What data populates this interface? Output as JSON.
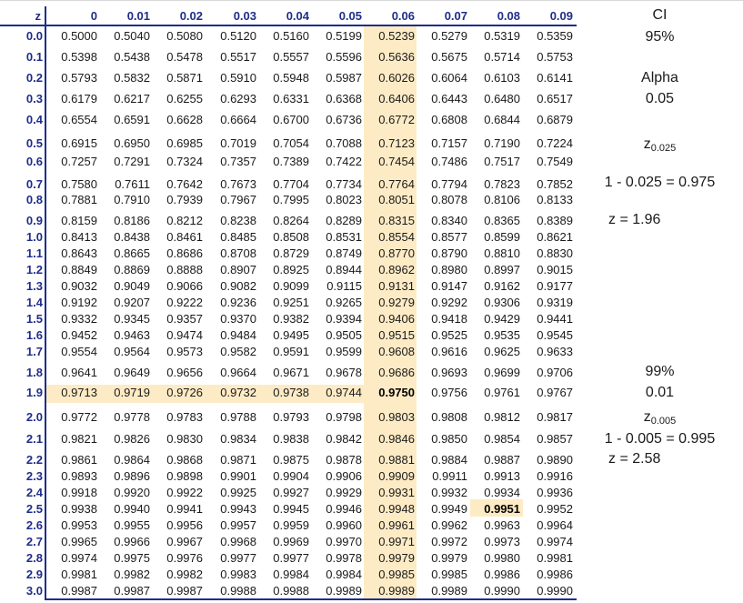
{
  "table": {
    "z_header": "z",
    "columns": [
      "0",
      "0.01",
      "0.02",
      "0.03",
      "0.04",
      "0.05",
      "0.06",
      "0.07",
      "0.08",
      "0.09"
    ],
    "rows": [
      {
        "z": "0.0",
        "values": [
          "0.5000",
          "0.5040",
          "0.5080",
          "0.5120",
          "0.5160",
          "0.5199",
          "0.5239",
          "0.5279",
          "0.5319",
          "0.5359"
        ]
      },
      {
        "z": "0.1",
        "values": [
          "0.5398",
          "0.5438",
          "0.5478",
          "0.5517",
          "0.5557",
          "0.5596",
          "0.5636",
          "0.5675",
          "0.5714",
          "0.5753"
        ]
      },
      {
        "z": "0.2",
        "values": [
          "0.5793",
          "0.5832",
          "0.5871",
          "0.5910",
          "0.5948",
          "0.5987",
          "0.6026",
          "0.6064",
          "0.6103",
          "0.6141"
        ]
      },
      {
        "z": "0.3",
        "values": [
          "0.6179",
          "0.6217",
          "0.6255",
          "0.6293",
          "0.6331",
          "0.6368",
          "0.6406",
          "0.6443",
          "0.6480",
          "0.6517"
        ]
      },
      {
        "z": "0.4",
        "values": [
          "0.6554",
          "0.6591",
          "0.6628",
          "0.6664",
          "0.6700",
          "0.6736",
          "0.6772",
          "0.6808",
          "0.6844",
          "0.6879"
        ]
      },
      {
        "z": "0.5",
        "values": [
          "0.6915",
          "0.6950",
          "0.6985",
          "0.7019",
          "0.7054",
          "0.7088",
          "0.7123",
          "0.7157",
          "0.7190",
          "0.7224"
        ]
      },
      {
        "z": "0.6",
        "values": [
          "0.7257",
          "0.7291",
          "0.7324",
          "0.7357",
          "0.7389",
          "0.7422",
          "0.7454",
          "0.7486",
          "0.7517",
          "0.7549"
        ]
      },
      {
        "z": "0.7",
        "values": [
          "0.7580",
          "0.7611",
          "0.7642",
          "0.7673",
          "0.7704",
          "0.7734",
          "0.7764",
          "0.7794",
          "0.7823",
          "0.7852"
        ]
      },
      {
        "z": "0.8",
        "values": [
          "0.7881",
          "0.7910",
          "0.7939",
          "0.7967",
          "0.7995",
          "0.8023",
          "0.8051",
          "0.8078",
          "0.8106",
          "0.8133"
        ]
      },
      {
        "z": "0.9",
        "values": [
          "0.8159",
          "0.8186",
          "0.8212",
          "0.8238",
          "0.8264",
          "0.8289",
          "0.8315",
          "0.8340",
          "0.8365",
          "0.8389"
        ]
      },
      {
        "z": "1.0",
        "values": [
          "0.8413",
          "0.8438",
          "0.8461",
          "0.8485",
          "0.8508",
          "0.8531",
          "0.8554",
          "0.8577",
          "0.8599",
          "0.8621"
        ]
      },
      {
        "z": "1.1",
        "values": [
          "0.8643",
          "0.8665",
          "0.8686",
          "0.8708",
          "0.8729",
          "0.8749",
          "0.8770",
          "0.8790",
          "0.8810",
          "0.8830"
        ]
      },
      {
        "z": "1.2",
        "values": [
          "0.8849",
          "0.8869",
          "0.8888",
          "0.8907",
          "0.8925",
          "0.8944",
          "0.8962",
          "0.8980",
          "0.8997",
          "0.9015"
        ]
      },
      {
        "z": "1.3",
        "values": [
          "0.9032",
          "0.9049",
          "0.9066",
          "0.9082",
          "0.9099",
          "0.9115",
          "0.9131",
          "0.9147",
          "0.9162",
          "0.9177"
        ]
      },
      {
        "z": "1.4",
        "values": [
          "0.9192",
          "0.9207",
          "0.9222",
          "0.9236",
          "0.9251",
          "0.9265",
          "0.9279",
          "0.9292",
          "0.9306",
          "0.9319"
        ]
      },
      {
        "z": "1.5",
        "values": [
          "0.9332",
          "0.9345",
          "0.9357",
          "0.9370",
          "0.9382",
          "0.9394",
          "0.9406",
          "0.9418",
          "0.9429",
          "0.9441"
        ]
      },
      {
        "z": "1.6",
        "values": [
          "0.9452",
          "0.9463",
          "0.9474",
          "0.9484",
          "0.9495",
          "0.9505",
          "0.9515",
          "0.9525",
          "0.9535",
          "0.9545"
        ]
      },
      {
        "z": "1.7",
        "values": [
          "0.9554",
          "0.9564",
          "0.9573",
          "0.9582",
          "0.9591",
          "0.9599",
          "0.9608",
          "0.9616",
          "0.9625",
          "0.9633"
        ]
      },
      {
        "z": "1.8",
        "values": [
          "0.9641",
          "0.9649",
          "0.9656",
          "0.9664",
          "0.9671",
          "0.9678",
          "0.9686",
          "0.9693",
          "0.9699",
          "0.9706"
        ]
      },
      {
        "z": "1.9",
        "values": [
          "0.9713",
          "0.9719",
          "0.9726",
          "0.9732",
          "0.9738",
          "0.9744",
          "0.9750",
          "0.9756",
          "0.9761",
          "0.9767"
        ]
      },
      {
        "z": "2.0",
        "values": [
          "0.9772",
          "0.9778",
          "0.9783",
          "0.9788",
          "0.9793",
          "0.9798",
          "0.9803",
          "0.9808",
          "0.9812",
          "0.9817"
        ]
      },
      {
        "z": "2.1",
        "values": [
          "0.9821",
          "0.9826",
          "0.9830",
          "0.9834",
          "0.9838",
          "0.9842",
          "0.9846",
          "0.9850",
          "0.9854",
          "0.9857"
        ]
      },
      {
        "z": "2.2",
        "values": [
          "0.9861",
          "0.9864",
          "0.9868",
          "0.9871",
          "0.9875",
          "0.9878",
          "0.9881",
          "0.9884",
          "0.9887",
          "0.9890"
        ]
      },
      {
        "z": "2.3",
        "values": [
          "0.9893",
          "0.9896",
          "0.9898",
          "0.9901",
          "0.9904",
          "0.9906",
          "0.9909",
          "0.9911",
          "0.9913",
          "0.9916"
        ]
      },
      {
        "z": "2.4",
        "values": [
          "0.9918",
          "0.9920",
          "0.9922",
          "0.9925",
          "0.9927",
          "0.9929",
          "0.9931",
          "0.9932",
          "0.9934",
          "0.9936"
        ]
      },
      {
        "z": "2.5",
        "values": [
          "0.9938",
          "0.9940",
          "0.9941",
          "0.9943",
          "0.9945",
          "0.9946",
          "0.9948",
          "0.9949",
          "0.9951",
          "0.9952"
        ]
      },
      {
        "z": "2.6",
        "values": [
          "0.9953",
          "0.9955",
          "0.9956",
          "0.9957",
          "0.9959",
          "0.9960",
          "0.9961",
          "0.9962",
          "0.9963",
          "0.9964"
        ]
      },
      {
        "z": "2.7",
        "values": [
          "0.9965",
          "0.9966",
          "0.9967",
          "0.9968",
          "0.9969",
          "0.9970",
          "0.9971",
          "0.9972",
          "0.9973",
          "0.9974"
        ]
      },
      {
        "z": "2.8",
        "values": [
          "0.9974",
          "0.9975",
          "0.9976",
          "0.9977",
          "0.9977",
          "0.9978",
          "0.9979",
          "0.9979",
          "0.9980",
          "0.9981"
        ]
      },
      {
        "z": "2.9",
        "values": [
          "0.9981",
          "0.9982",
          "0.9982",
          "0.9983",
          "0.9984",
          "0.9984",
          "0.9985",
          "0.9985",
          "0.9986",
          "0.9986"
        ]
      },
      {
        "z": "3.0",
        "values": [
          "0.9987",
          "0.9987",
          "0.9987",
          "0.9988",
          "0.9988",
          "0.9989",
          "0.9989",
          "0.9989",
          "0.9990",
          "0.9990"
        ]
      }
    ],
    "bold_cells": [
      {
        "z": "1.9",
        "column": "0.06"
      },
      {
        "z": "2.5",
        "column": "0.08"
      }
    ],
    "highlight_color": "#fdebc5",
    "header_color": "#1f2d8a"
  },
  "side": {
    "ci_label": "CI",
    "ci_95": "95%",
    "alpha_label": "Alpha",
    "alpha_05": "0.05",
    "z_sym_1": "z",
    "z_sub_1": "0.025",
    "calc_1": "1 - 0.025 = 0.975",
    "result_1": "z = 1.96",
    "ci_99": "99%",
    "alpha_01": "0.01",
    "z_sym_2": "z",
    "z_sub_2": "0.005",
    "calc_2": "1 - 0.005 = 0.995",
    "result_2": "z = 2.58"
  }
}
